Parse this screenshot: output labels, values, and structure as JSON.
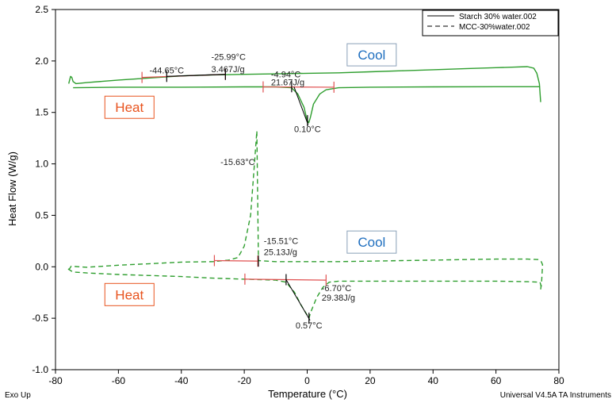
{
  "chart_data": {
    "type": "line",
    "xlabel": "Temperature (°C)",
    "ylabel": "Heat Flow (W/g)",
    "xlim": [
      -80,
      80
    ],
    "ylim": [
      -1.0,
      2.5
    ],
    "xticks": [
      -80,
      -60,
      -40,
      -20,
      0,
      20,
      40,
      60,
      80
    ],
    "yticks": [
      -1.0,
      -0.5,
      0.0,
      0.5,
      1.0,
      1.5,
      2.0,
      2.5
    ],
    "xtick_labels": [
      "-80",
      "-60",
      "-40",
      "-20",
      "0",
      "20",
      "40",
      "60",
      "80"
    ],
    "ytick_labels": [
      "-1.0",
      "-0.5",
      "0.0",
      "0.5",
      "1.0",
      "1.5",
      "2.0",
      "2.5"
    ],
    "grid": false,
    "legend_position": "top-right",
    "legend": [
      {
        "label": "Starch 30% water.002",
        "style": "solid"
      },
      {
        "label": "MCC-30%water.002",
        "style": "dashed"
      }
    ],
    "series": [
      {
        "name": "Starch 30% water.002",
        "style": "solid",
        "color": "#2e9e2e",
        "segments": [
          {
            "x": [
              -75.8,
              -75.2,
              -74.8,
              -74.4,
              -73.5,
              -70,
              -60,
              -50,
              -40,
              -30,
              -20,
              -10,
              0,
              10,
              20,
              30,
              40,
              50,
              60,
              66,
              70,
              72,
              73,
              73.8,
              74.2
            ],
            "y": [
              1.78,
              1.85,
              1.84,
              1.8,
              1.78,
              1.79,
              1.815,
              1.835,
              1.855,
              1.865,
              1.87,
              1.875,
              1.88,
              1.885,
              1.895,
              1.905,
              1.915,
              1.925,
              1.935,
              1.94,
              1.945,
              1.93,
              1.88,
              1.78,
              1.6
            ]
          },
          {
            "x": [
              -74.4,
              -60,
              -40,
              -20,
              -10,
              -5,
              -3,
              -1,
              0,
              0.5,
              1,
              2,
              4,
              6,
              10,
              20,
              40,
              60,
              74
            ],
            "y": [
              1.74,
              1.745,
              1.745,
              1.748,
              1.748,
              1.74,
              1.68,
              1.55,
              1.42,
              1.4,
              1.45,
              1.58,
              1.68,
              1.72,
              1.74,
              1.745,
              1.748,
              1.75,
              1.75
            ]
          }
        ]
      },
      {
        "name": "MCC-30%water.002",
        "style": "dashed",
        "color": "#2e9e2e",
        "segments": [
          {
            "x": [
              74.2,
              74.5,
              74.8,
              74.4,
              73.5,
              70,
              60,
              50,
              40,
              30,
              20,
              10,
              0,
              -10,
              -15.5,
              -16,
              -17,
              -18,
              -20,
              -22,
              -25,
              -30,
              -40,
              -50,
              -60,
              -70,
              -75,
              -76
            ],
            "y": [
              -0.22,
              -0.15,
              0.02,
              0.05,
              0.07,
              0.075,
              0.075,
              0.07,
              0.065,
              0.06,
              0.055,
              0.05,
              0.05,
              0.05,
              0.06,
              1.32,
              0.9,
              0.5,
              0.2,
              0.09,
              0.065,
              0.05,
              0.045,
              0.03,
              0.015,
              -0.005,
              0.005,
              -0.04
            ]
          },
          {
            "x": [
              -76,
              -75,
              -74.5,
              -70,
              -60,
              -50,
              -40,
              -30,
              -20,
              -10,
              -6.7,
              -4,
              -2,
              0,
              0.57,
              1,
              3,
              5,
              7,
              10,
              20,
              40,
              60,
              70,
              74,
              74.6
            ],
            "y": [
              -0.02,
              -0.04,
              -0.05,
              -0.06,
              -0.075,
              -0.085,
              -0.095,
              -0.11,
              -0.12,
              -0.13,
              -0.15,
              -0.25,
              -0.37,
              -0.47,
              -0.5,
              -0.45,
              -0.3,
              -0.2,
              -0.15,
              -0.14,
              -0.14,
              -0.14,
              -0.14,
              -0.145,
              -0.15,
              -0.22
            ]
          }
        ]
      }
    ],
    "baselines": [
      {
        "x": [
          -52.5,
          -26
        ],
        "y": [
          1.84,
          1.87
        ],
        "color": "#e05050"
      },
      {
        "x": [
          -44.65,
          -25.99
        ],
        "y": [
          1.85,
          1.87
        ],
        "color": "#000000"
      },
      {
        "x": [
          -14,
          8.5
        ],
        "y": [
          1.748,
          1.745
        ],
        "color": "#e05050"
      },
      {
        "x": [
          -29.5,
          -15.7
        ],
        "y": [
          0.06,
          0.055
        ],
        "color": "#e05050"
      },
      {
        "x": [
          -19.8,
          6
        ],
        "y": [
          -0.12,
          -0.13
        ],
        "color": "#e05050"
      }
    ],
    "annotations": [
      {
        "text": "-44.65°C",
        "x": -44.65,
        "y": 1.88,
        "anchor": "middle"
      },
      {
        "text": "-25.99°C",
        "x": -30.5,
        "y": 2.01,
        "anchor": "start"
      },
      {
        "text": "3.467J/g",
        "x": -30.5,
        "y": 1.89,
        "anchor": "start"
      },
      {
        "text": "-4.94°C",
        "x": -11.5,
        "y": 1.84,
        "anchor": "start"
      },
      {
        "text": "21.67J/g",
        "x": -11.5,
        "y": 1.765,
        "anchor": "start"
      },
      {
        "text": "0.10°C",
        "x": 0.1,
        "y": 1.31,
        "anchor": "middle"
      },
      {
        "text": "-15.63°C",
        "x": -16.6,
        "y": 0.99,
        "anchor": "end"
      },
      {
        "text": "-15.51°C",
        "x": -13.8,
        "y": 0.22,
        "anchor": "start"
      },
      {
        "text": "25.13J/g",
        "x": -13.8,
        "y": 0.115,
        "anchor": "start"
      },
      {
        "text": "-6.70°C",
        "x": 4.6,
        "y": -0.235,
        "anchor": "start"
      },
      {
        "text": "29.38J/g",
        "x": 4.6,
        "y": -0.33,
        "anchor": "start"
      },
      {
        "text": "0.57°C",
        "x": 0.57,
        "y": -0.6,
        "anchor": "middle"
      }
    ],
    "boxed_labels": [
      {
        "text": "Cool",
        "x": 20.5,
        "y": 2.06,
        "color": "#1f6fbf"
      },
      {
        "text": "Heat",
        "x": -56.5,
        "y": 1.55,
        "color": "#e8531e"
      },
      {
        "text": "Cool",
        "x": 20.5,
        "y": 0.24,
        "color": "#1f6fbf"
      },
      {
        "text": "Heat",
        "x": -56.5,
        "y": -0.27,
        "color": "#e8531e"
      }
    ],
    "footer_left": "Exo Up",
    "footer_right": "Universal V4.5A TA Instruments"
  }
}
